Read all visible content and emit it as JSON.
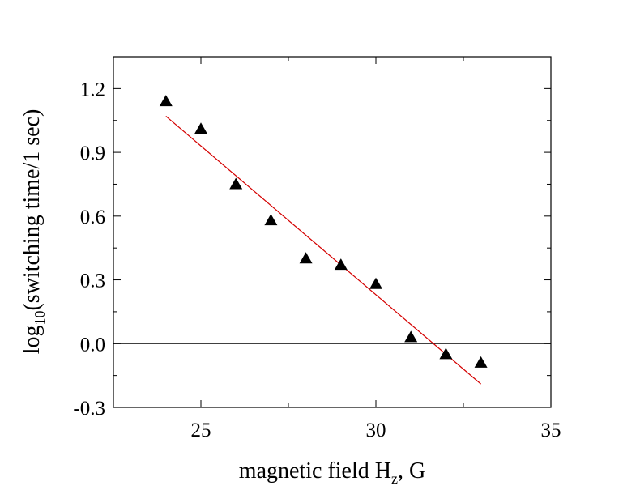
{
  "chart_data": {
    "type": "scatter",
    "xlabel": {
      "main": "magnetic field H",
      "sub": "z",
      "suffix": ", G"
    },
    "ylabel": {
      "main": "log",
      "sub": "10",
      "suffix": "(switching time/1 sec)"
    },
    "xlim": [
      22.5,
      35
    ],
    "ylim": [
      -0.3,
      1.35
    ],
    "xticks": [
      25,
      30,
      35
    ],
    "xtick_labels": [
      "25",
      "30",
      "35"
    ],
    "yticks": [
      -0.3,
      0.0,
      0.3,
      0.6,
      0.9,
      1.2
    ],
    "ytick_labels": [
      "-0.3",
      "0.0",
      "0.3",
      "0.6",
      "0.9",
      "1.2"
    ],
    "grid": false,
    "reference_line_y": 0,
    "series": [
      {
        "marker": "triangle",
        "color": "#000000",
        "x": [
          24,
          25,
          26,
          27,
          28,
          29,
          30,
          31,
          32,
          33
        ],
        "y": [
          1.14,
          1.01,
          0.75,
          0.58,
          0.4,
          0.37,
          0.28,
          0.03,
          -0.05,
          -0.09
        ]
      }
    ],
    "fit_line": {
      "color": "#d40000",
      "x": [
        24,
        33
      ],
      "y": [
        1.07,
        -0.19
      ]
    }
  }
}
